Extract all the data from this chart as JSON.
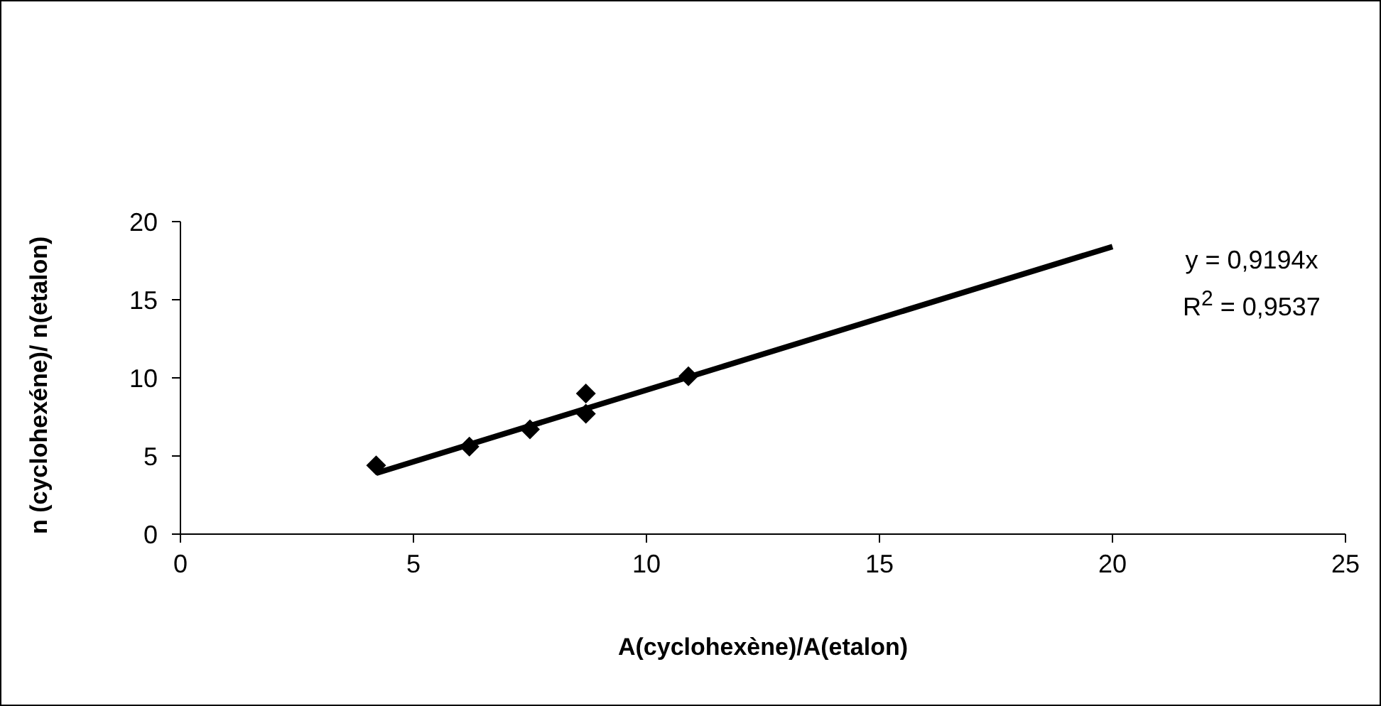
{
  "chart_data": {
    "type": "scatter",
    "xlabel": "A(cyclohexène)/A(etalon)",
    "ylabel": "n (cyclohexéne)/ n(etalon)",
    "xlim": [
      0,
      25
    ],
    "xticks": [
      0,
      5,
      10,
      15,
      20,
      25
    ],
    "ylim": [
      0,
      20
    ],
    "yticks": [
      0,
      5,
      10,
      15,
      20
    ],
    "grid": false,
    "legend": false,
    "marker": "diamond",
    "series": [
      {
        "color": "#000000",
        "x": [
          4.2,
          6.2,
          7.5,
          8.7,
          8.7,
          10.9
        ],
        "values": [
          4.4,
          5.6,
          6.7,
          7.7,
          9.0,
          10.1
        ]
      },
      {
        "type": "line",
        "color": "#000000",
        "marker": "none",
        "x": [
          4.2,
          20
        ],
        "values": [
          3.9,
          18.4
        ]
      }
    ],
    "annotations": [
      "y = 0,9194x",
      "R$^{2}$ = 0,9537"
    ]
  }
}
